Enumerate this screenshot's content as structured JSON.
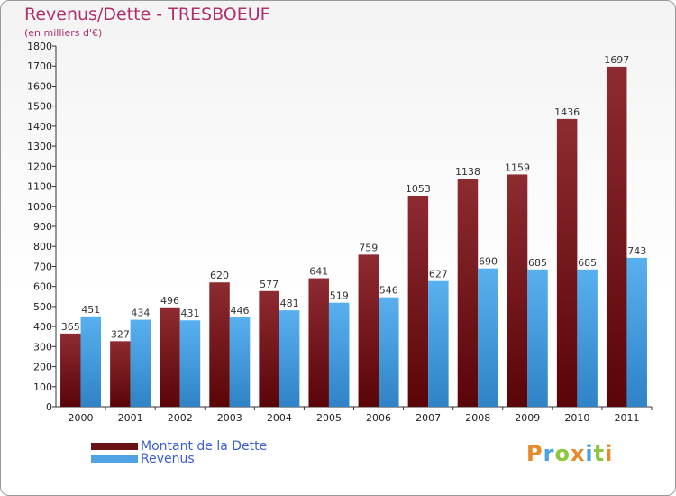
{
  "header": {
    "title": "Revenus/Dette - TRESBOEUF",
    "subtitle": "(en milliers d'€)"
  },
  "colors": {
    "dette": "#7a1b20",
    "revenus": "#4fa3e4"
  },
  "legend": [
    {
      "label": "Montant de la Dette",
      "color": "#6b1014"
    },
    {
      "label": "Revenus",
      "color": "#4fa3e4"
    }
  ],
  "logo": {
    "letters": [
      "P",
      "r",
      "o",
      "x",
      "i",
      "t",
      "i"
    ],
    "colors": [
      "#e8892b",
      "#4aa3df",
      "#8dc63f",
      "#e8892b",
      "#4aa3df",
      "#8dc63f",
      "#e8892b"
    ]
  },
  "chart_data": {
    "type": "bar",
    "categories": [
      "2000",
      "2001",
      "2002",
      "2003",
      "2004",
      "2005",
      "2006",
      "2007",
      "2008",
      "2009",
      "2010",
      "2011"
    ],
    "series": [
      {
        "name": "Montant de la Dette",
        "values": [
          365,
          327,
          496,
          620,
          577,
          641,
          759,
          1053,
          1138,
          1159,
          1436,
          1697
        ]
      },
      {
        "name": "Revenus",
        "values": [
          451,
          434,
          431,
          446,
          481,
          519,
          546,
          627,
          690,
          685,
          685,
          743
        ]
      }
    ],
    "title": "Revenus/Dette - TRESBOEUF",
    "ylabel": "(en milliers d'€)",
    "ylim": [
      0,
      1800
    ],
    "yticks": [
      0,
      100,
      200,
      300,
      400,
      500,
      600,
      700,
      800,
      900,
      1000,
      1100,
      1200,
      1300,
      1400,
      1500,
      1600,
      1700,
      1800
    ],
    "grid": false,
    "legend_position": "bottom-left"
  }
}
